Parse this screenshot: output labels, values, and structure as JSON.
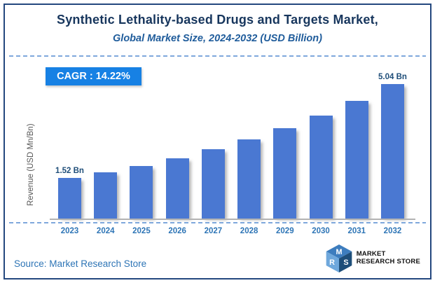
{
  "header": {
    "title": "Synthetic Lethality-based Drugs and Targets Market,",
    "subtitle": "Global Market Size, 2024-2032 (USD Billion)"
  },
  "chart": {
    "cagr_label": "CAGR :  14.22%",
    "y_axis_label": "Revenue (USD Mn/Bn)"
  },
  "chart_data": {
    "type": "bar",
    "title": "Synthetic Lethality-based Drugs and Targets Market,",
    "subtitle": "Global Market Size, 2024-2032 (USD Billion)",
    "categories": [
      "2023",
      "2024",
      "2025",
      "2026",
      "2027",
      "2028",
      "2029",
      "2030",
      "2031",
      "2032"
    ],
    "values": [
      1.52,
      1.74,
      1.98,
      2.27,
      2.59,
      2.96,
      3.38,
      3.86,
      4.41,
      5.04
    ],
    "value_labels": [
      "1.52 Bn",
      "",
      "",
      "",
      "",
      "",
      "",
      "",
      "",
      "5.04 Bn"
    ],
    "cagr_pct": 14.22,
    "xlabel": "",
    "ylabel": "Revenue (USD Mn/Bn)",
    "ylim": [
      0,
      5.25
    ],
    "grid": false,
    "legend": false,
    "bar_color": "#4A78D2"
  },
  "footer": {
    "source": "Source: Market Research Store",
    "logo": {
      "line1": "MARKET",
      "line2": "RESEARCH STORE",
      "cube_letters": [
        "M",
        "R",
        "S"
      ]
    }
  },
  "colors": {
    "frame_border": "#24487F",
    "title": "#17365D",
    "subtitle": "#1F5C9B",
    "badge_bg": "#1781E4",
    "badge_text": "#FFFFFF",
    "bar": "#4A78D2",
    "year_label": "#2E75B6",
    "value_label": "#1F4E79",
    "dashed_line": "#7FA8DC",
    "axis_line": "#B3B3B3",
    "source_text": "#2E75B6"
  }
}
